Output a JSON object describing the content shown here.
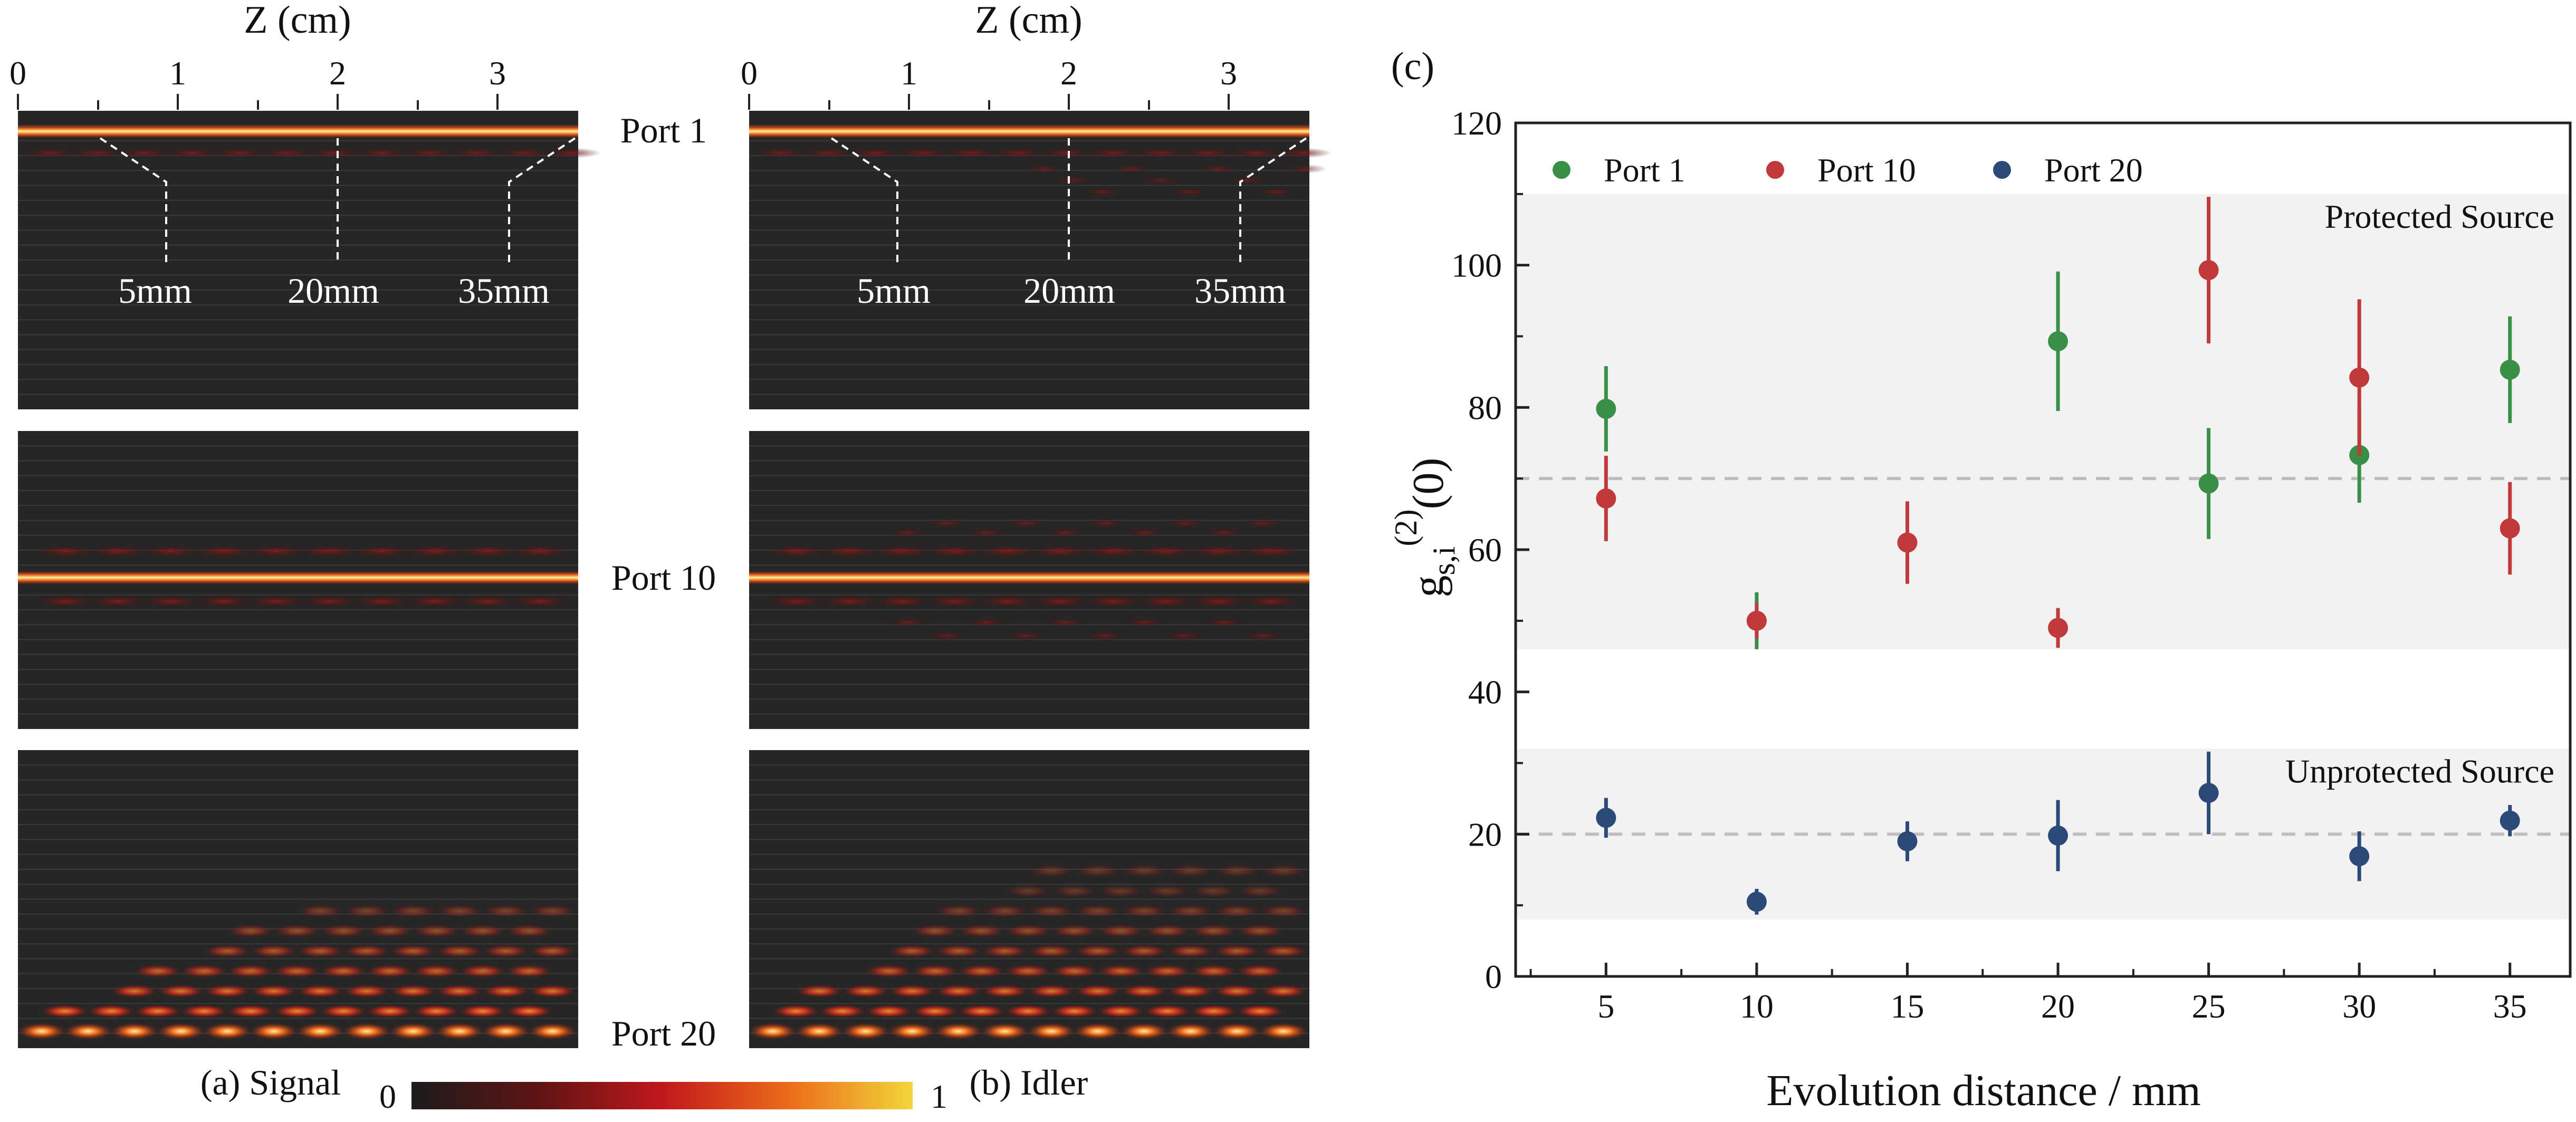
{
  "heatmaps": {
    "z_axis_label": "Z (cm)",
    "z_ticks": [
      "0",
      "1",
      "2",
      "3"
    ],
    "port_labels": [
      "Port 1",
      "Port 10",
      "Port 20"
    ],
    "annotations": [
      "5mm",
      "20mm",
      "35mm"
    ],
    "panel_a_caption": "(a) Signal",
    "panel_b_caption": "(b) Idler",
    "colorbar": {
      "min_label": "0",
      "max_label": "1",
      "colors": [
        "#1c1c1c",
        "#5e1414",
        "#c0181c",
        "#ec6a1a",
        "#f2d63a"
      ]
    }
  },
  "chart_data": {
    "type": "scatter",
    "panel_label": "(c)",
    "xlabel": "Evolution distance / mm",
    "ylabel_main": "g",
    "ylabel_sub": "s,i",
    "ylabel_sup": "(2)",
    "ylabel_tail": "(0)",
    "xlim": [
      2,
      37
    ],
    "ylim": [
      0,
      120
    ],
    "x_ticks": [
      "5",
      "10",
      "15",
      "20",
      "25",
      "30",
      "35"
    ],
    "y_ticks": [
      "0",
      "20",
      "40",
      "60",
      "80",
      "100",
      "120"
    ],
    "grid": false,
    "legend_position": "top-left",
    "series": [
      {
        "name": "Port 1",
        "color": "#3a8f46",
        "x": [
          5,
          10,
          20,
          25,
          30,
          35
        ],
        "y": [
          79.8,
          50,
          89.3,
          69.3,
          73.3,
          85.3
        ],
        "yerr": [
          6,
          4,
          9.8,
          7.8,
          6.7,
          7.5
        ]
      },
      {
        "name": "Port 10",
        "color": "#c0393b",
        "x": [
          5,
          10,
          15,
          20,
          25,
          30,
          35
        ],
        "y": [
          67.2,
          50,
          61,
          49,
          99.3,
          84.2,
          63
        ],
        "yerr": [
          6,
          2.5,
          5.8,
          2.8,
          10.3,
          11,
          6.5
        ]
      },
      {
        "name": "Port 20",
        "color": "#2b4a78",
        "x": [
          5,
          10,
          15,
          20,
          25,
          30,
          35
        ],
        "y": [
          22.3,
          10.5,
          19,
          19.8,
          25.8,
          16.9,
          21.9
        ],
        "yerr": [
          2.8,
          1.8,
          2.8,
          5,
          5.8,
          3.5,
          2.2
        ]
      }
    ],
    "regions": [
      {
        "label": "Protected Source",
        "y_range": [
          46,
          110
        ],
        "reference_line": 70
      },
      {
        "label": "Unprotected Source",
        "y_range": [
          8,
          32
        ],
        "reference_line": 20
      }
    ]
  }
}
